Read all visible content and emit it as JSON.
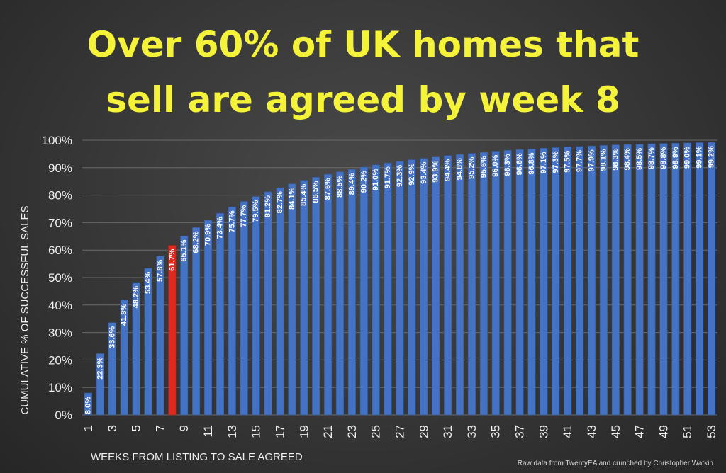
{
  "title_line1": "Over 60% of UK homes that",
  "title_line2": "sell are agreed by week 8",
  "footer": "Raw data from TwentyEA and crunched by Christopher Watkin",
  "chart_data": {
    "type": "bar",
    "xlabel": "WEEKS FROM LISTING TO SALE AGREED",
    "ylabel": "CUMULATIVE % OF SUCCESSFUL SALES",
    "ylim": [
      0,
      100
    ],
    "yticks": [
      "0%",
      "10%",
      "20%",
      "30%",
      "40%",
      "50%",
      "60%",
      "70%",
      "80%",
      "90%",
      "100%"
    ],
    "grid": true,
    "highlight_category": 8,
    "bar_color": "#4472c4",
    "highlight_color": "#e02a20",
    "categories": [
      1,
      2,
      3,
      4,
      5,
      6,
      7,
      8,
      9,
      10,
      11,
      12,
      13,
      14,
      15,
      16,
      17,
      18,
      19,
      20,
      21,
      22,
      23,
      24,
      25,
      26,
      27,
      28,
      29,
      30,
      31,
      32,
      33,
      34,
      35,
      36,
      37,
      38,
      39,
      40,
      41,
      42,
      43,
      44,
      45,
      46,
      47,
      48,
      49,
      50,
      51,
      52,
      53
    ],
    "x_tick_labels": [
      "1",
      "3",
      "5",
      "7",
      "9",
      "11",
      "13",
      "15",
      "17",
      "19",
      "21",
      "23",
      "25",
      "27",
      "29",
      "31",
      "33",
      "35",
      "37",
      "39",
      "41",
      "43",
      "45",
      "47",
      "49",
      "51",
      "53"
    ],
    "values": [
      8.0,
      22.3,
      33.6,
      41.8,
      48.2,
      53.4,
      57.8,
      61.7,
      65.1,
      68.2,
      70.9,
      73.4,
      75.7,
      77.7,
      79.5,
      81.2,
      82.7,
      84.1,
      85.4,
      86.5,
      87.6,
      88.5,
      89.4,
      90.2,
      91.0,
      91.7,
      92.3,
      92.9,
      93.4,
      93.9,
      94.4,
      94.8,
      95.2,
      95.6,
      96.0,
      96.3,
      96.6,
      96.8,
      97.1,
      97.3,
      97.5,
      97.7,
      97.9,
      98.1,
      98.3,
      98.4,
      98.5,
      98.7,
      98.8,
      98.9,
      99.0,
      99.1,
      99.2
    ],
    "data_labels": [
      "8.0%",
      "22.3%",
      "33.6%",
      "41.8%",
      "48.2%",
      "53.4%",
      "57.8%",
      "61.7%",
      "65.1%",
      "68.2%",
      "70.9%",
      "73.4%",
      "75.7%",
      "77.7%",
      "79.5%",
      "81.2%",
      "82.7%",
      "84.1%",
      "85.4%",
      "86.5%",
      "87.6%",
      "88.5%",
      "89.4%",
      "90.2%",
      "91.0%",
      "91.7%",
      "92.3%",
      "92.9%",
      "93.4%",
      "93.9%",
      "94.4%",
      "94.8%",
      "95.2%",
      "95.6%",
      "96.0%",
      "96.3%",
      "96.6%",
      "96.8%",
      "97.1%",
      "97.3%",
      "97.5%",
      "97.7%",
      "97.9%",
      "98.1%",
      "98.3%",
      "98.4%",
      "98.5%",
      "98.7%",
      "98.8%",
      "98.9%",
      "99.0%",
      "99.1%",
      "99.2%"
    ]
  }
}
